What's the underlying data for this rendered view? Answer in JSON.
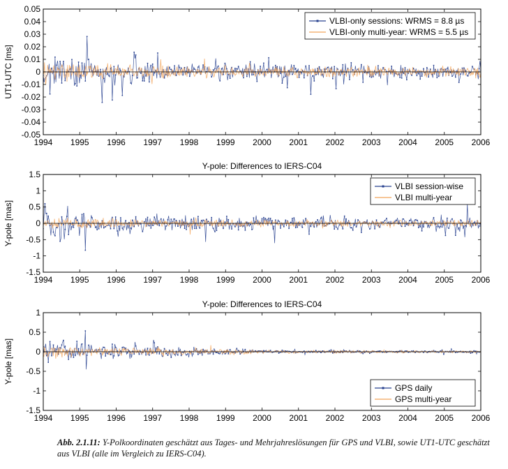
{
  "colors": {
    "vlbi_session": "#27408f",
    "multi_year": "#f2a55a",
    "zero_line": "#000000"
  },
  "chart_data": [
    {
      "type": "line",
      "title": "",
      "xlabel": "",
      "ylabel": "UT1-UTC [ms]",
      "xlim": [
        1994,
        2006
      ],
      "ylim": [
        -0.05,
        0.05
      ],
      "xticks": [
        1994,
        1995,
        1996,
        1997,
        1998,
        1999,
        2000,
        2001,
        2002,
        2003,
        2004,
        2005,
        2006
      ],
      "yticks": [
        -0.05,
        -0.04,
        -0.03,
        -0.02,
        -0.01,
        0,
        0.01,
        0.02,
        0.03,
        0.04,
        0.05
      ],
      "ytick_labels": [
        "-0.05",
        "-0.04",
        "-0.03",
        "-0.02",
        "-0.01",
        "0",
        "0.01",
        "0.02",
        "0.03",
        "0.04",
        "0.05"
      ],
      "legend_position": "top-right",
      "series": [
        {
          "name": "VLBI-only sessions: WRMS = 8.8 µs",
          "color": "#27408f",
          "style": "line-markers",
          "spread": [
            [
              1994,
              0.022
            ],
            [
              1996,
              0.014
            ],
            [
              1998,
              0.011
            ],
            [
              2000,
              0.01
            ],
            [
              2006,
              0.009
            ]
          ]
        },
        {
          "name": "VLBI-only multi-year: WRMS = 5.5 µs",
          "color": "#f2a55a",
          "style": "line",
          "spread": [
            [
              1994,
              0.012
            ],
            [
              1996,
              0.008
            ],
            [
              1998,
              0.006
            ],
            [
              2000,
              0.006
            ],
            [
              2006,
              0.006
            ]
          ]
        }
      ]
    },
    {
      "type": "line",
      "title": "Y-pole: Differences to IERS-C04",
      "xlabel": "",
      "ylabel": "Y-pole [mas]",
      "xlim": [
        1994,
        2006
      ],
      "ylim": [
        -1.5,
        1.5
      ],
      "xticks": [
        1994,
        1995,
        1996,
        1997,
        1998,
        1999,
        2000,
        2001,
        2002,
        2003,
        2004,
        2005,
        2006
      ],
      "yticks": [
        -1.5,
        -1,
        -0.5,
        0,
        0.5,
        1,
        1.5
      ],
      "ytick_labels": [
        "-1.5",
        "-1",
        "-0.5",
        "0",
        "0.5",
        "1",
        "1.5"
      ],
      "legend_position": "top-right",
      "series": [
        {
          "name": "VLBI session-wise",
          "color": "#27408f",
          "style": "line-markers",
          "spread": [
            [
              1994,
              0.65
            ],
            [
              1996,
              0.42
            ],
            [
              1998,
              0.34
            ],
            [
              2000,
              0.3
            ],
            [
              2006,
              0.28
            ]
          ]
        },
        {
          "name": "VLBI multi-year",
          "color": "#f2a55a",
          "style": "line",
          "spread": [
            [
              1994,
              0.28
            ],
            [
              1996,
              0.2
            ],
            [
              1998,
              0.16
            ],
            [
              2000,
              0.14
            ],
            [
              2006,
              0.13
            ]
          ]
        }
      ]
    },
    {
      "type": "line",
      "title": "Y-pole: Differences to IERS-C04",
      "xlabel": "",
      "ylabel": "Y-pole [mas]",
      "xlim": [
        1994,
        2006
      ],
      "ylim": [
        -1.5,
        1
      ],
      "xticks": [
        1994,
        1995,
        1996,
        1997,
        1998,
        1999,
        2000,
        2001,
        2002,
        2003,
        2004,
        2005,
        2006
      ],
      "yticks": [
        -1.5,
        -1,
        -0.5,
        0,
        0.5,
        1
      ],
      "ytick_labels": [
        "-1.5",
        "-1",
        "-0.5",
        "0",
        "0.5",
        "1"
      ],
      "legend_position": "bottom-right",
      "series": [
        {
          "name": "GPS daily",
          "color": "#27408f",
          "style": "line-markers",
          "spread": [
            [
              1994,
              0.45
            ],
            [
              1995,
              0.32
            ],
            [
              1997,
              0.2
            ],
            [
              1999,
              0.13
            ],
            [
              2000,
              0.06
            ],
            [
              2006,
              0.04
            ]
          ]
        },
        {
          "name": "GPS multi-year",
          "color": "#f2a55a",
          "style": "line",
          "spread": [
            [
              1994,
              0.25
            ],
            [
              1995,
              0.18
            ],
            [
              1997,
              0.14
            ],
            [
              1999,
              0.11
            ],
            [
              2000,
              0.06
            ],
            [
              2006,
              0.04
            ]
          ]
        }
      ]
    }
  ],
  "caption": {
    "label": "Abb. 2.1.11:",
    "text": " Y-Polkoordinaten geschätzt aus Tages- und Mehrjahreslösungen für GPS und VLBI, sowie UT1-UTC geschätzt aus VLBI (alle im Vergleich zu IERS-C04)."
  }
}
